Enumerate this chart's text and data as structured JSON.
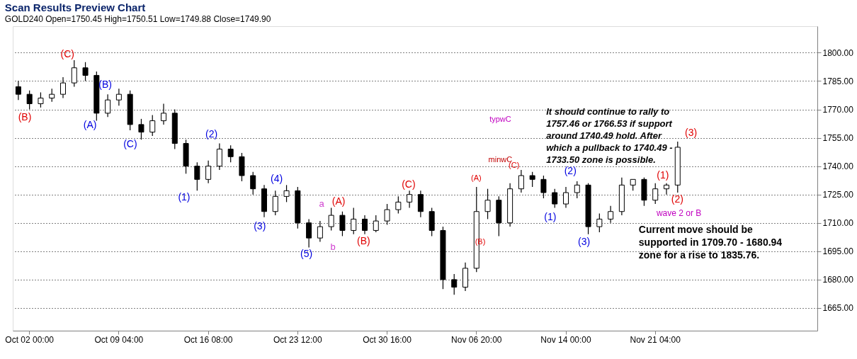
{
  "chart_data": {
    "type": "candlestick",
    "title": "Scan Results Preview Chart",
    "subtitle": "GOLD240  Open=1750.45  High=1750.51  Low=1749.88  Close=1749.90",
    "categories": [
      null,
      "Oct 02 00:00",
      null,
      null,
      null,
      null,
      null,
      null,
      null,
      "Oct 09 04:00",
      null,
      null,
      null,
      null,
      null,
      null,
      null,
      "Oct 16 08:00",
      null,
      null,
      null,
      null,
      null,
      null,
      null,
      "Oct 23 12:00",
      null,
      null,
      null,
      null,
      null,
      null,
      null,
      "Oct 30 16:00",
      null,
      null,
      null,
      null,
      null,
      null,
      null,
      "Nov 06 20:00",
      null,
      null,
      null,
      null,
      null,
      null,
      null,
      "Nov 14 00:00",
      null,
      null,
      null,
      null,
      null,
      null,
      null,
      "Nov 21 04:00",
      null,
      null,
      null,
      null,
      null,
      null,
      null,
      null,
      null,
      null,
      null,
      null,
      null,
      null
    ],
    "ylim": [
      1653,
      1814
    ],
    "yticks": [
      {
        "value": 1665,
        "label": "1665.00"
      },
      {
        "value": 1680,
        "label": "1680.00"
      },
      {
        "value": 1695,
        "label": "1695.00"
      },
      {
        "value": 1710,
        "label": "1710.00"
      },
      {
        "value": 1725,
        "label": "1725.00"
      },
      {
        "value": 1740,
        "label": "1740.00"
      },
      {
        "value": 1755,
        "label": "1755.00"
      },
      {
        "value": 1770,
        "label": "1770.00"
      },
      {
        "value": 1785,
        "label": "1785.00"
      },
      {
        "value": 1800,
        "label": "1800.00"
      }
    ],
    "grid": "y",
    "series": [
      {
        "type": "candlestick",
        "color": "#000000",
        "ohlc": [
          [
            1782,
            1785,
            1775,
            1778
          ],
          [
            1778,
            1780,
            1770,
            1773
          ],
          [
            1773,
            1779,
            1771,
            1776
          ],
          [
            1776,
            1781,
            1774,
            1778
          ],
          [
            1778,
            1787,
            1776,
            1784
          ],
          [
            1784,
            1796,
            1782,
            1792
          ],
          [
            1792,
            1795,
            1785,
            1788
          ],
          [
            1788,
            1790,
            1764,
            1768
          ],
          [
            1768,
            1778,
            1766,
            1775
          ],
          [
            1775,
            1781,
            1772,
            1778
          ],
          [
            1778,
            1780,
            1759,
            1762
          ],
          [
            1762,
            1765,
            1754,
            1758
          ],
          [
            1758,
            1767,
            1756,
            1764
          ],
          [
            1764,
            1773,
            1762,
            1768
          ],
          [
            1768,
            1770,
            1749,
            1752
          ],
          [
            1752,
            1754,
            1736,
            1740
          ],
          [
            1740,
            1742,
            1727,
            1733
          ],
          [
            1733,
            1743,
            1731,
            1740
          ],
          [
            1740,
            1752,
            1738,
            1749
          ],
          [
            1749,
            1751,
            1742,
            1745
          ],
          [
            1745,
            1747,
            1732,
            1735
          ],
          [
            1735,
            1737,
            1725,
            1728
          ],
          [
            1728,
            1730,
            1713,
            1716
          ],
          [
            1716,
            1727,
            1714,
            1724
          ],
          [
            1724,
            1730,
            1721,
            1727
          ],
          [
            1727,
            1729,
            1707,
            1710
          ],
          [
            1710,
            1712,
            1697,
            1702
          ],
          [
            1702,
            1711,
            1700,
            1708
          ],
          [
            1708,
            1718,
            1706,
            1714
          ],
          [
            1714,
            1716,
            1703,
            1706
          ],
          [
            1706,
            1718,
            1704,
            1712
          ],
          [
            1712,
            1714,
            1704,
            1706
          ],
          [
            1706,
            1714,
            1705,
            1711
          ],
          [
            1711,
            1720,
            1709,
            1717
          ],
          [
            1717,
            1724,
            1715,
            1721
          ],
          [
            1721,
            1727,
            1718,
            1725
          ],
          [
            1725,
            1727,
            1713,
            1716
          ],
          [
            1716,
            1718,
            1703,
            1706
          ],
          [
            1706,
            1708,
            1675,
            1680
          ],
          [
            1680,
            1683,
            1672,
            1676
          ],
          [
            1676,
            1689,
            1674,
            1686
          ],
          [
            1686,
            1729,
            1684,
            1716
          ],
          [
            1716,
            1728,
            1712,
            1722
          ],
          [
            1722,
            1724,
            1703,
            1710
          ],
          [
            1710,
            1731,
            1708,
            1728
          ],
          [
            1728,
            1738,
            1726,
            1735
          ],
          [
            1735,
            1737,
            1729,
            1733
          ],
          [
            1733,
            1735,
            1723,
            1726
          ],
          [
            1726,
            1728,
            1718,
            1720
          ],
          [
            1720,
            1729,
            1718,
            1726
          ],
          [
            1726,
            1732,
            1723,
            1730
          ],
          [
            1730,
            1731,
            1704,
            1708
          ],
          [
            1708,
            1715,
            1705,
            1712
          ],
          [
            1712,
            1719,
            1710,
            1716
          ],
          [
            1716,
            1734,
            1714,
            1730
          ],
          [
            1730,
            1733,
            1727,
            1733
          ],
          [
            1733,
            1734,
            1719,
            1722
          ],
          [
            1722,
            1731,
            1720,
            1728
          ],
          [
            1728,
            1731,
            1725,
            1730
          ],
          [
            1730,
            1753,
            1726,
            1750
          ],
          null,
          null,
          null,
          null,
          null,
          null,
          null,
          null,
          null,
          null,
          null,
          null
        ]
      }
    ],
    "annotations": [
      "It should continue to rally to\n1757.46 or 1766.53 if support\naround 1740.49 hold. After\nwhich a pullback to 1740.49 -\n1733.50 zone is possible.",
      "Current move should be\nsupported in 1709.70 - 1680.94\nzone for a rise to 1835.76.",
      "(B)",
      "(C)",
      "(A)",
      "(B)",
      "(C)",
      "(1)",
      "(2)",
      "(3)",
      "(4)",
      "(5)",
      "a",
      "b",
      "(A)",
      "(B)",
      "(C)",
      "(A)",
      "(B)",
      "typwC",
      "minwC",
      "(C)",
      "(1)",
      "(2)",
      "(3)",
      "(1)",
      "(2)",
      "(3)",
      "wave 2 or B"
    ]
  }
}
